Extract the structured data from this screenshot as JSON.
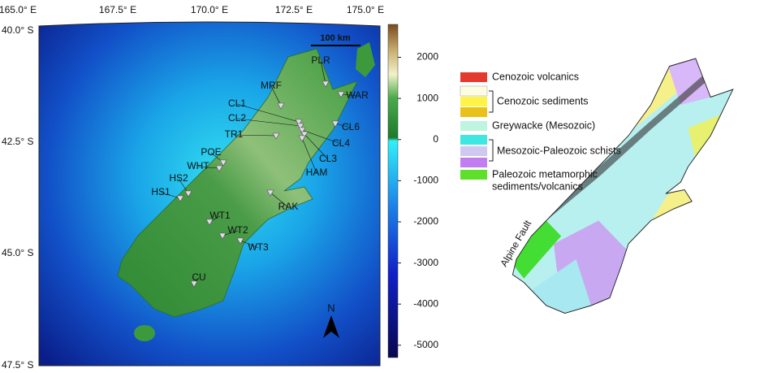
{
  "left_map": {
    "lon_labels": [
      "165.0° E",
      "167.5° E",
      "170.0° E",
      "172.5° E",
      "175.0° E"
    ],
    "lat_labels": [
      "40.0° S",
      "42.5° S",
      "45.0° S",
      "47.5° S"
    ],
    "scale_bar": "100 km",
    "north": "N",
    "stations": [
      "PLR",
      "WAR",
      "MRF",
      "CL1",
      "CL2",
      "CL6",
      "CL4",
      "CL3",
      "HAM",
      "TR1",
      "POE",
      "WHT",
      "HS2",
      "HS1",
      "RAK",
      "WT1",
      "WT2",
      "WT3",
      "CU"
    ],
    "colorbar": {
      "lim": [
        -5300,
        2800
      ],
      "ticks": [
        2000,
        1000,
        0,
        -1000,
        -2000,
        -3000,
        -4000,
        -5000
      ]
    }
  },
  "right_map": {
    "legend": [
      "Cenozoic volcanics",
      "Cenozoic sediments",
      "Greywacke (Mesozoic)",
      "Mesozoic-Paleozoic schists",
      "Paleozoic metamorphic",
      "sediments/volcanics"
    ],
    "fault_label": "Alpine Fault"
  }
}
